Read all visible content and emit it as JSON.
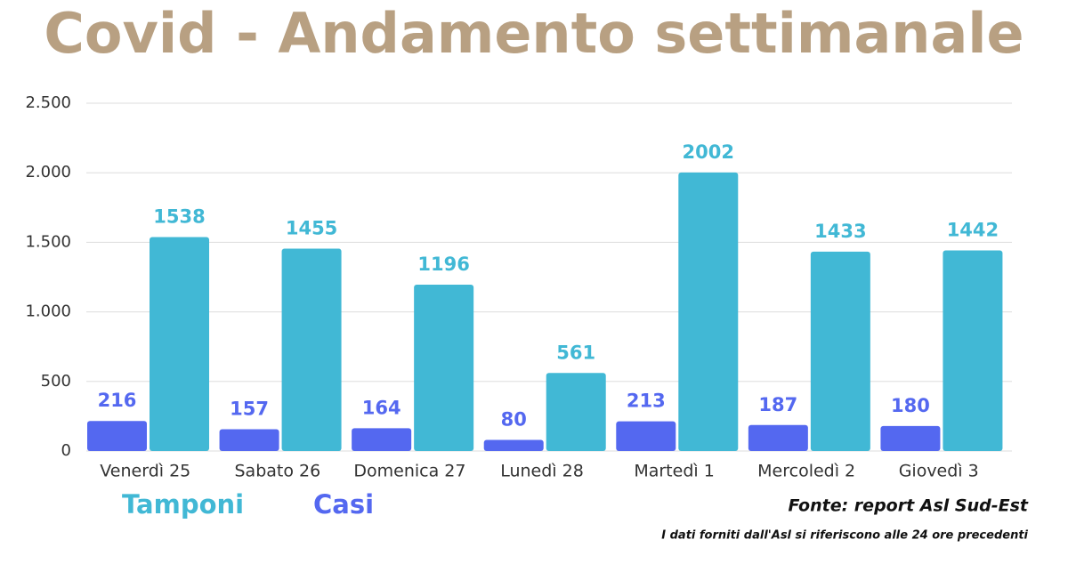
{
  "chart_data": {
    "type": "bar",
    "title": "Covid - Andamento settimanale",
    "categories": [
      "Venerdì 25",
      "Sabato 26",
      "Domenica 27",
      "Lunedì 28",
      "Martedì 1",
      "Mercoledì 2",
      "Giovedì 3"
    ],
    "series": [
      {
        "name": "Casi",
        "color": "#5468f0",
        "values": [
          216,
          157,
          164,
          80,
          213,
          187,
          180
        ]
      },
      {
        "name": "Tamponi",
        "color": "#41b8d5",
        "values": [
          1538,
          1455,
          1196,
          561,
          2002,
          1433,
          1442
        ]
      }
    ],
    "ylim": [
      0,
      2500
    ],
    "yticks": [
      0,
      500,
      {
        "value": 1000,
        "label": "1.000"
      },
      {
        "value": 1500,
        "label": "1.500"
      },
      {
        "value": 2000,
        "label": "2.000"
      },
      {
        "value": 2500,
        "label": "2.500"
      }
    ],
    "grid": true,
    "source": "Fonte: report Asl Sud-Est",
    "note": "I dati forniti dall'Asl si riferiscono alle 24 ore precedenti"
  }
}
